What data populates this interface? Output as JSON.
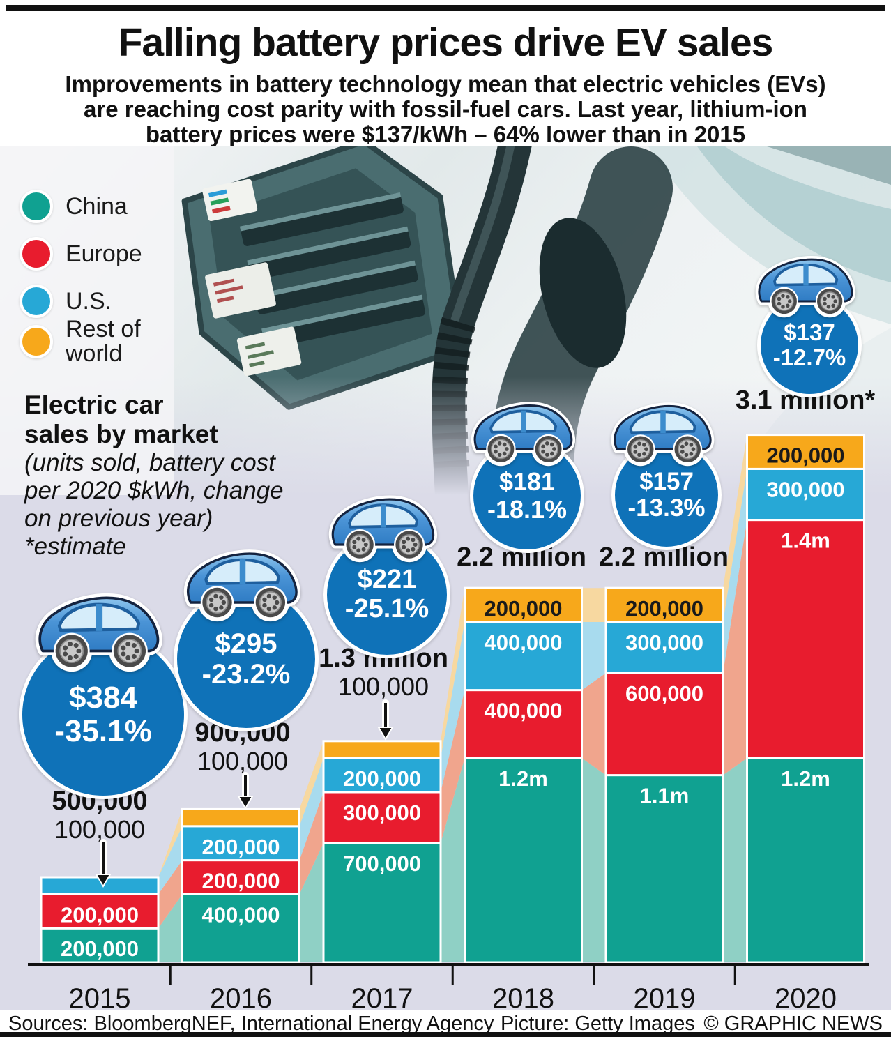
{
  "header": {
    "title": "Falling battery prices drive EV sales",
    "subtitle_lines": [
      "Improvements in battery technology mean that electric vehicles (EVs)",
      "are reaching cost parity with fossil-fuel cars. Last year, lithium-ion",
      "battery prices were $137/kWh – 64% lower than in 2015"
    ]
  },
  "legend": {
    "items": [
      {
        "label": "China",
        "color": "#10a191"
      },
      {
        "label": "Europe",
        "color": "#e81c2e"
      },
      {
        "label": "U.S.",
        "color": "#27a8d6"
      },
      {
        "label": "Rest of world",
        "color": "#f7a81b"
      }
    ]
  },
  "note": {
    "bold_lines": [
      "Electric car",
      "sales by market"
    ],
    "italic_lines": [
      "(units sold, battery cost",
      "per 2020 $kWh, change",
      "on previous year)",
      "*estimate"
    ]
  },
  "chart_data": {
    "type": "bar",
    "stacked": true,
    "units": "vehicles sold (thousands)",
    "categories": [
      "2015",
      "2016",
      "2017",
      "2018",
      "2019",
      "2020"
    ],
    "series": [
      {
        "name": "China",
        "color": "#10a191",
        "ribbon": "#8fd0c5",
        "values_thousands": [
          200,
          400,
          700,
          1200,
          1100,
          1200
        ],
        "labels": [
          "200,000",
          "400,000",
          "700,000",
          "1.2m",
          "1.1m",
          "1.2m"
        ]
      },
      {
        "name": "Europe",
        "color": "#e81c2e",
        "ribbon": "#f0a58d",
        "values_thousands": [
          200,
          200,
          300,
          400,
          600,
          1400
        ],
        "labels": [
          "200,000",
          "200,000",
          "300,000",
          "400,000",
          "600,000",
          "1.4m"
        ]
      },
      {
        "name": "U.S.",
        "color": "#27a8d6",
        "ribbon": "#a8dbee",
        "values_thousands": [
          100,
          200,
          200,
          400,
          300,
          300
        ],
        "labels": [
          null,
          "200,000",
          "200,000",
          "400,000",
          "300,000",
          "300,000"
        ]
      },
      {
        "name": "Rest of world",
        "color": "#f7a81b",
        "ribbon": "#f7d8a0",
        "label_color": "#1a1a1a",
        "values_thousands": [
          0,
          100,
          100,
          200,
          200,
          200
        ],
        "labels": [
          null,
          null,
          null,
          "200,000",
          "200,000",
          "200,000"
        ]
      }
    ],
    "totals": [
      {
        "total": "500,000",
        "pointer": "100,000"
      },
      {
        "total": "900,000",
        "pointer": "100,000"
      },
      {
        "total": "1.3 million",
        "pointer": "100,000"
      },
      {
        "total": "2.2 million"
      },
      {
        "total": "2.2 million"
      },
      {
        "total": "3.1 million*"
      }
    ],
    "battery_cost": [
      {
        "price": "$384",
        "change": "-35.1%"
      },
      {
        "price": "$295",
        "change": "-23.2%"
      },
      {
        "price": "$221",
        "change": "-25.1%"
      },
      {
        "price": "$181",
        "change": "-18.1%"
      },
      {
        "price": "$157",
        "change": "-13.3%"
      },
      {
        "price": "$137",
        "change": "-12.7%"
      }
    ],
    "circle_color": "#0f72b8",
    "background": "#dbdbe8"
  },
  "footer": {
    "sources": "Sources: BloombergNEF, International Energy Agency",
    "picture": "Picture: Getty Images",
    "credit": "© GRAPHIC NEWS"
  }
}
